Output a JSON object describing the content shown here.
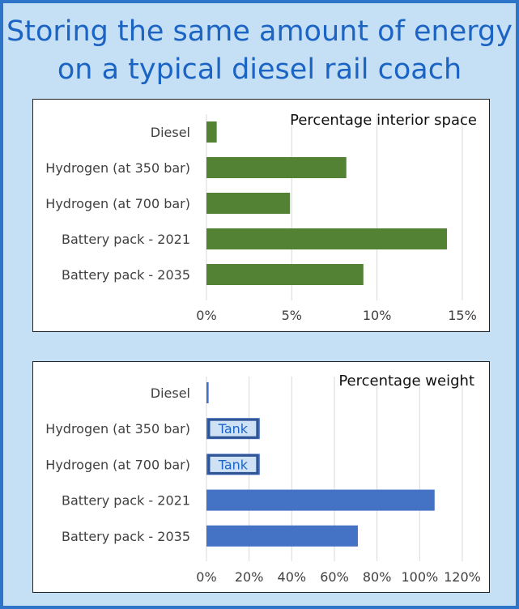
{
  "page": {
    "title_line1": "Storing the same amount of energy",
    "title_line2": "on a typical diesel rail coach"
  },
  "colors": {
    "background": "#c5dff5",
    "border": "#2e74c9",
    "title": "#1c64c4",
    "chart1_bar": "#548235",
    "chart2_bar": "#4472c4",
    "tank_fill": "#cfe2f5",
    "tank_border": "#2f5597"
  },
  "chart_data": [
    {
      "type": "bar",
      "orientation": "horizontal",
      "title": "Percentage interior space",
      "categories": [
        "Diesel",
        "Hydrogen (at 350 bar)",
        "Hydrogen (at 700 bar)",
        "Battery pack - 2021",
        "Battery pack - 2035"
      ],
      "values": [
        0.6,
        8.2,
        4.9,
        14.1,
        9.2
      ],
      "xlim": [
        0,
        15
      ],
      "ticks": [
        "0%",
        "5%",
        "10%",
        "15%"
      ],
      "grid": true
    },
    {
      "type": "bar",
      "orientation": "horizontal",
      "title": "Percentage weight",
      "categories": [
        "Diesel",
        "Hydrogen (at 350 bar)",
        "Hydrogen (at 700 bar)",
        "Battery pack - 2021",
        "Battery pack - 2035"
      ],
      "values": [
        1,
        25,
        25,
        107,
        71
      ],
      "xlim": [
        0,
        120
      ],
      "ticks": [
        "0%",
        "20%",
        "40%",
        "60%",
        "80%",
        "100%",
        "120%"
      ],
      "grid": true,
      "annotations": [
        {
          "category": "Hydrogen (at 350 bar)",
          "text": "Tank"
        },
        {
          "category": "Hydrogen (at 700 bar)",
          "text": "Tank"
        }
      ]
    }
  ]
}
